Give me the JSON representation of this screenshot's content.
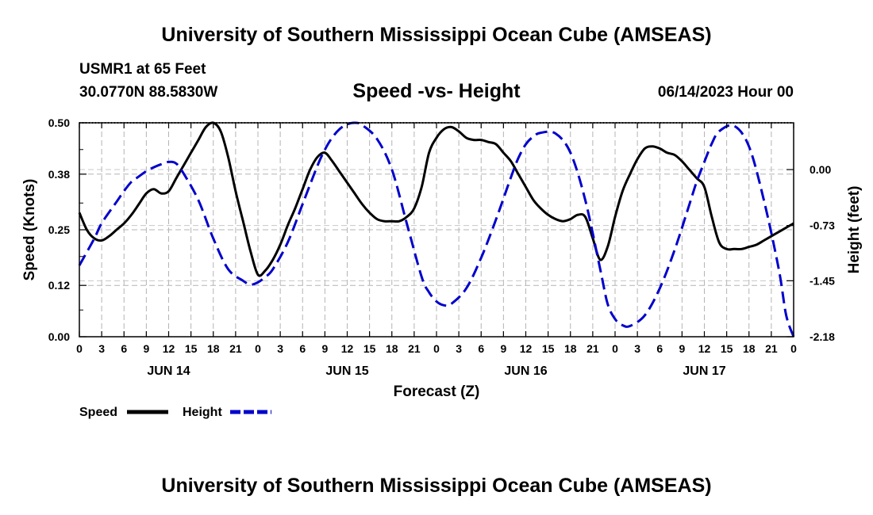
{
  "header": {
    "title": "University of Southern Mississippi Ocean Cube (AMSEAS)",
    "station": "USMR1 at 65 Feet",
    "coords": "30.0770N  88.5830W",
    "run_time": "06/14/2023 Hour 00"
  },
  "footer": {
    "title": "University of Southern Mississippi Ocean Cube (AMSEAS)"
  },
  "chart_data": {
    "type": "line",
    "title": "Speed -vs- Height",
    "xlabel": "Forecast (Z)",
    "ylabel": "Speed (Knots)",
    "y2label": "Height (feet)",
    "xlim": [
      0,
      96
    ],
    "ylim": [
      0,
      0.5
    ],
    "y2lim": [
      -2.18,
      0.61
    ],
    "x_tick_step": 3,
    "x_tick_labels": [
      "0",
      "3",
      "6",
      "9",
      "12",
      "15",
      "18",
      "21",
      "0",
      "3",
      "6",
      "9",
      "12",
      "15",
      "18",
      "21",
      "0",
      "3",
      "6",
      "9",
      "12",
      "15",
      "18",
      "21",
      "0",
      "3",
      "6",
      "9",
      "12",
      "15",
      "18",
      "21",
      "0"
    ],
    "date_labels": [
      {
        "label": "JUN 14",
        "x": 12
      },
      {
        "label": "JUN 15",
        "x": 36
      },
      {
        "label": "JUN 16",
        "x": 60
      },
      {
        "label": "JUN 17",
        "x": 84
      }
    ],
    "y_ticks": [
      0.0,
      0.12,
      0.25,
      0.38,
      0.5
    ],
    "y_tick_labels": [
      "0.00",
      "0.12",
      "0.25",
      "0.38",
      "0.50"
    ],
    "y2_ticks": [
      0.0,
      -0.73,
      -1.45,
      -2.18
    ],
    "y2_tick_labels": [
      "0.00",
      "-0.73",
      "-1.45",
      "-2.18"
    ],
    "grid": true,
    "legend": [
      {
        "name": "Speed",
        "color": "#000000",
        "dash": "solid"
      },
      {
        "name": "Height",
        "color": "#0000cc",
        "dash": "dashed"
      }
    ],
    "series": [
      {
        "name": "Speed",
        "axis": "left",
        "color": "#000000",
        "x": [
          0,
          1,
          2,
          3,
          4,
          5,
          6,
          7,
          8,
          9,
          10,
          11,
          12,
          13,
          14,
          15,
          16,
          17,
          18,
          19,
          20,
          21,
          22,
          23,
          24,
          25,
          26,
          27,
          28,
          29,
          30,
          31,
          32,
          33,
          34,
          35,
          36,
          37,
          38,
          39,
          40,
          41,
          42,
          43,
          44,
          45,
          46,
          47,
          48,
          49,
          50,
          51,
          52,
          53,
          54,
          55,
          56,
          57,
          58,
          59,
          60,
          61,
          62,
          63,
          64,
          65,
          66,
          67,
          68,
          69,
          70,
          71,
          72,
          73,
          74,
          75,
          76,
          77,
          78,
          79,
          80,
          81,
          82,
          83,
          84,
          85,
          86,
          87,
          88,
          89,
          90,
          91,
          92,
          93,
          94,
          95,
          96
        ],
        "values": [
          0.29,
          0.25,
          0.23,
          0.225,
          0.235,
          0.25,
          0.265,
          0.285,
          0.31,
          0.335,
          0.345,
          0.335,
          0.34,
          0.37,
          0.4,
          0.43,
          0.46,
          0.49,
          0.5,
          0.48,
          0.42,
          0.34,
          0.27,
          0.2,
          0.145,
          0.155,
          0.18,
          0.215,
          0.26,
          0.3,
          0.345,
          0.39,
          0.42,
          0.43,
          0.41,
          0.385,
          0.36,
          0.335,
          0.31,
          0.29,
          0.275,
          0.27,
          0.27,
          0.27,
          0.28,
          0.3,
          0.35,
          0.43,
          0.465,
          0.485,
          0.49,
          0.48,
          0.465,
          0.46,
          0.46,
          0.455,
          0.45,
          0.43,
          0.41,
          0.38,
          0.35,
          0.32,
          0.3,
          0.285,
          0.275,
          0.27,
          0.275,
          0.285,
          0.28,
          0.23,
          0.18,
          0.21,
          0.28,
          0.34,
          0.38,
          0.415,
          0.44,
          0.445,
          0.44,
          0.43,
          0.425,
          0.41,
          0.39,
          0.37,
          0.35,
          0.28,
          0.22,
          0.205,
          0.205,
          0.205,
          0.21,
          0.215,
          0.225,
          0.235,
          0.245,
          0.255,
          0.265
        ]
      },
      {
        "name": "Height",
        "axis": "right",
        "color": "#0000cc",
        "x": [
          0,
          2,
          3,
          5,
          6,
          7,
          8,
          9,
          10,
          11,
          12,
          13,
          14,
          16,
          18,
          20,
          22,
          23,
          24,
          25,
          26,
          28,
          30,
          32,
          33,
          34,
          35,
          36,
          37,
          38,
          40,
          42,
          44,
          46,
          47,
          48,
          49,
          50,
          52,
          54,
          56,
          58,
          59,
          60,
          61,
          62,
          64,
          66,
          68,
          70,
          71,
          72,
          73,
          74,
          76,
          78,
          80,
          82,
          83,
          84,
          85,
          86,
          88,
          90,
          92,
          94,
          95,
          96
        ],
        "values": [
          -1.25,
          -0.9,
          -0.7,
          -0.42,
          -0.28,
          -0.16,
          -0.09,
          -0.02,
          0.03,
          0.07,
          0.1,
          0.08,
          -0.05,
          -0.4,
          -0.9,
          -1.3,
          -1.45,
          -1.5,
          -1.47,
          -1.4,
          -1.3,
          -0.95,
          -0.45,
          0.05,
          0.26,
          0.42,
          0.53,
          0.59,
          0.61,
          0.58,
          0.4,
          0.0,
          -0.7,
          -1.4,
          -1.6,
          -1.72,
          -1.77,
          -1.75,
          -1.55,
          -1.15,
          -0.65,
          -0.1,
          0.15,
          0.33,
          0.43,
          0.48,
          0.47,
          0.22,
          -0.4,
          -1.3,
          -1.75,
          -1.95,
          -2.03,
          -2.04,
          -1.9,
          -1.55,
          -1.05,
          -0.45,
          -0.15,
          0.1,
          0.34,
          0.5,
          0.57,
          0.3,
          -0.4,
          -1.3,
          -1.9,
          -2.18
        ]
      }
    ]
  }
}
